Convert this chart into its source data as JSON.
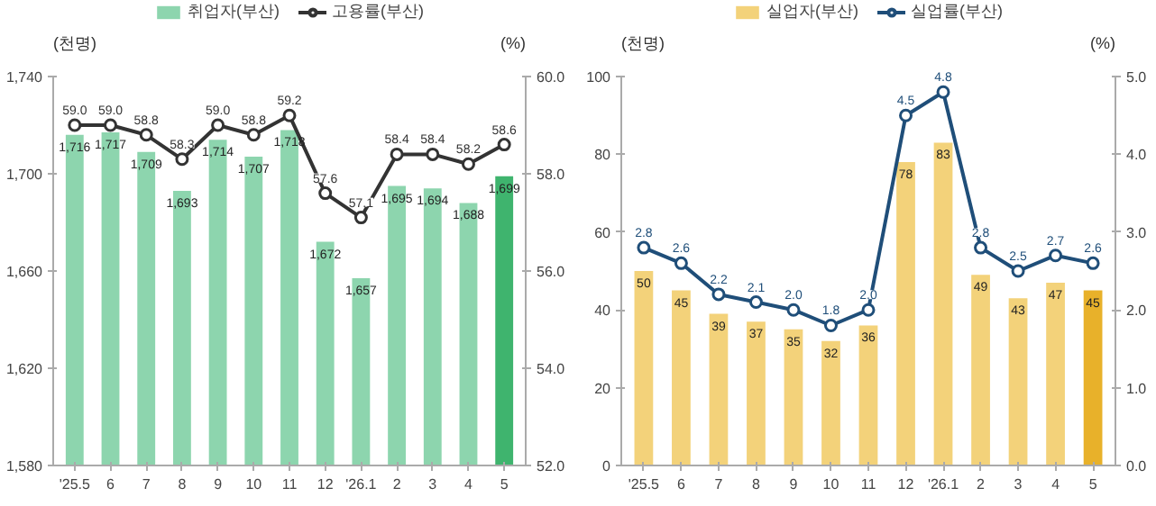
{
  "chart_data": [
    {
      "type": "bar",
      "categories": [
        "'25.5",
        "6",
        "7",
        "8",
        "9",
        "10",
        "11",
        "12",
        "'26.1",
        "2",
        "3",
        "4",
        "5"
      ],
      "ylabel": "(천명)",
      "y2label": "(%)",
      "ylim": [
        1580,
        1740
      ],
      "yticks": [
        {
          "value": 1580,
          "label": "1,580"
        },
        {
          "value": 1620,
          "label": "1,620"
        },
        {
          "value": 1660,
          "label": "1,660"
        },
        {
          "value": 1700,
          "label": "1,700"
        },
        {
          "value": 1740,
          "label": "1,740"
        }
      ],
      "y2lim": [
        52,
        60
      ],
      "y2ticks": [
        {
          "value": 52,
          "label": "52.0"
        },
        {
          "value": 54,
          "label": "54.0"
        },
        {
          "value": 56,
          "label": "56.0"
        },
        {
          "value": 58,
          "label": "58.0"
        },
        {
          "value": 60,
          "label": "60.0"
        }
      ],
      "legend": "top",
      "grid": false,
      "series": [
        {
          "name": "취업자(부산)",
          "type": "bar",
          "color": "#8dd5ae",
          "colors": [
            "#8dd5ae",
            "#8dd5ae",
            "#8dd5ae",
            "#8dd5ae",
            "#8dd5ae",
            "#8dd5ae",
            "#8dd5ae",
            "#8dd5ae",
            "#8dd5ae",
            "#8dd5ae",
            "#8dd5ae",
            "#8dd5ae",
            "#3fb46e"
          ],
          "values": [
            1716,
            1717,
            1709,
            1693,
            1714,
            1707,
            1718,
            1672,
            1657,
            1695,
            1694,
            1688,
            1699
          ],
          "value_labels": [
            "1,716",
            "1,717",
            "1,709",
            "1,693",
            "1,714",
            "1,707",
            "1,718",
            "1,672",
            "1,657",
            "1,695",
            "1,694",
            "1,688",
            "1,699"
          ]
        },
        {
          "name": "고용률(부산)",
          "type": "line",
          "axis": "y2",
          "color": "#333333",
          "marker": "circle",
          "values": [
            59.0,
            59.0,
            58.8,
            58.3,
            59.0,
            58.8,
            59.2,
            57.6,
            57.1,
            58.4,
            58.4,
            58.2,
            58.6
          ],
          "value_labels": [
            "59.0",
            "59.0",
            "58.8",
            "58.3",
            "59.0",
            "58.8",
            "59.2",
            "57.6",
            "57.1",
            "58.4",
            "58.4",
            "58.2",
            "58.6"
          ]
        }
      ]
    },
    {
      "type": "bar",
      "categories": [
        "'25.5",
        "6",
        "7",
        "8",
        "9",
        "10",
        "11",
        "12",
        "'26.1",
        "2",
        "3",
        "4",
        "5"
      ],
      "ylabel": "(천명)",
      "y2label": "(%)",
      "ylim": [
        0,
        100
      ],
      "yticks": [
        0,
        20,
        40,
        60,
        80,
        100
      ],
      "y2lim": [
        0,
        5
      ],
      "y2ticks": [
        {
          "value": 0,
          "label": "0.0"
        },
        {
          "value": 1,
          "label": "1.0"
        },
        {
          "value": 2,
          "label": "2.0"
        },
        {
          "value": 3,
          "label": "3.0"
        },
        {
          "value": 4,
          "label": "4.0"
        },
        {
          "value": 5,
          "label": "5.0"
        }
      ],
      "legend": "top",
      "grid": false,
      "series": [
        {
          "name": "실업자(부산)",
          "type": "bar",
          "color": "#f3d27a",
          "colors": [
            "#f3d27a",
            "#f3d27a",
            "#f3d27a",
            "#f3d27a",
            "#f3d27a",
            "#f3d27a",
            "#f3d27a",
            "#f3d27a",
            "#f3d27a",
            "#f3d27a",
            "#f3d27a",
            "#f3d27a",
            "#e8b12a"
          ],
          "values": [
            50,
            45,
            39,
            37,
            35,
            32,
            36,
            78,
            83,
            49,
            43,
            47,
            45
          ],
          "value_labels": [
            "50",
            "45",
            "39",
            "37",
            "35",
            "32",
            "36",
            "78",
            "83",
            "49",
            "43",
            "47",
            "45"
          ]
        },
        {
          "name": "실업률(부산)",
          "type": "line",
          "axis": "y2",
          "color": "#1f4e79",
          "marker": "circle",
          "values": [
            2.8,
            2.6,
            2.2,
            2.1,
            2.0,
            1.8,
            2.0,
            4.5,
            4.8,
            2.8,
            2.5,
            2.7,
            2.6
          ],
          "value_labels": [
            "2.8",
            "2.6",
            "2.2",
            "2.1",
            "2.0",
            "1.8",
            "2.0",
            "4.5",
            "4.8",
            "2.8",
            "2.5",
            "2.7",
            "2.6"
          ]
        }
      ]
    }
  ]
}
